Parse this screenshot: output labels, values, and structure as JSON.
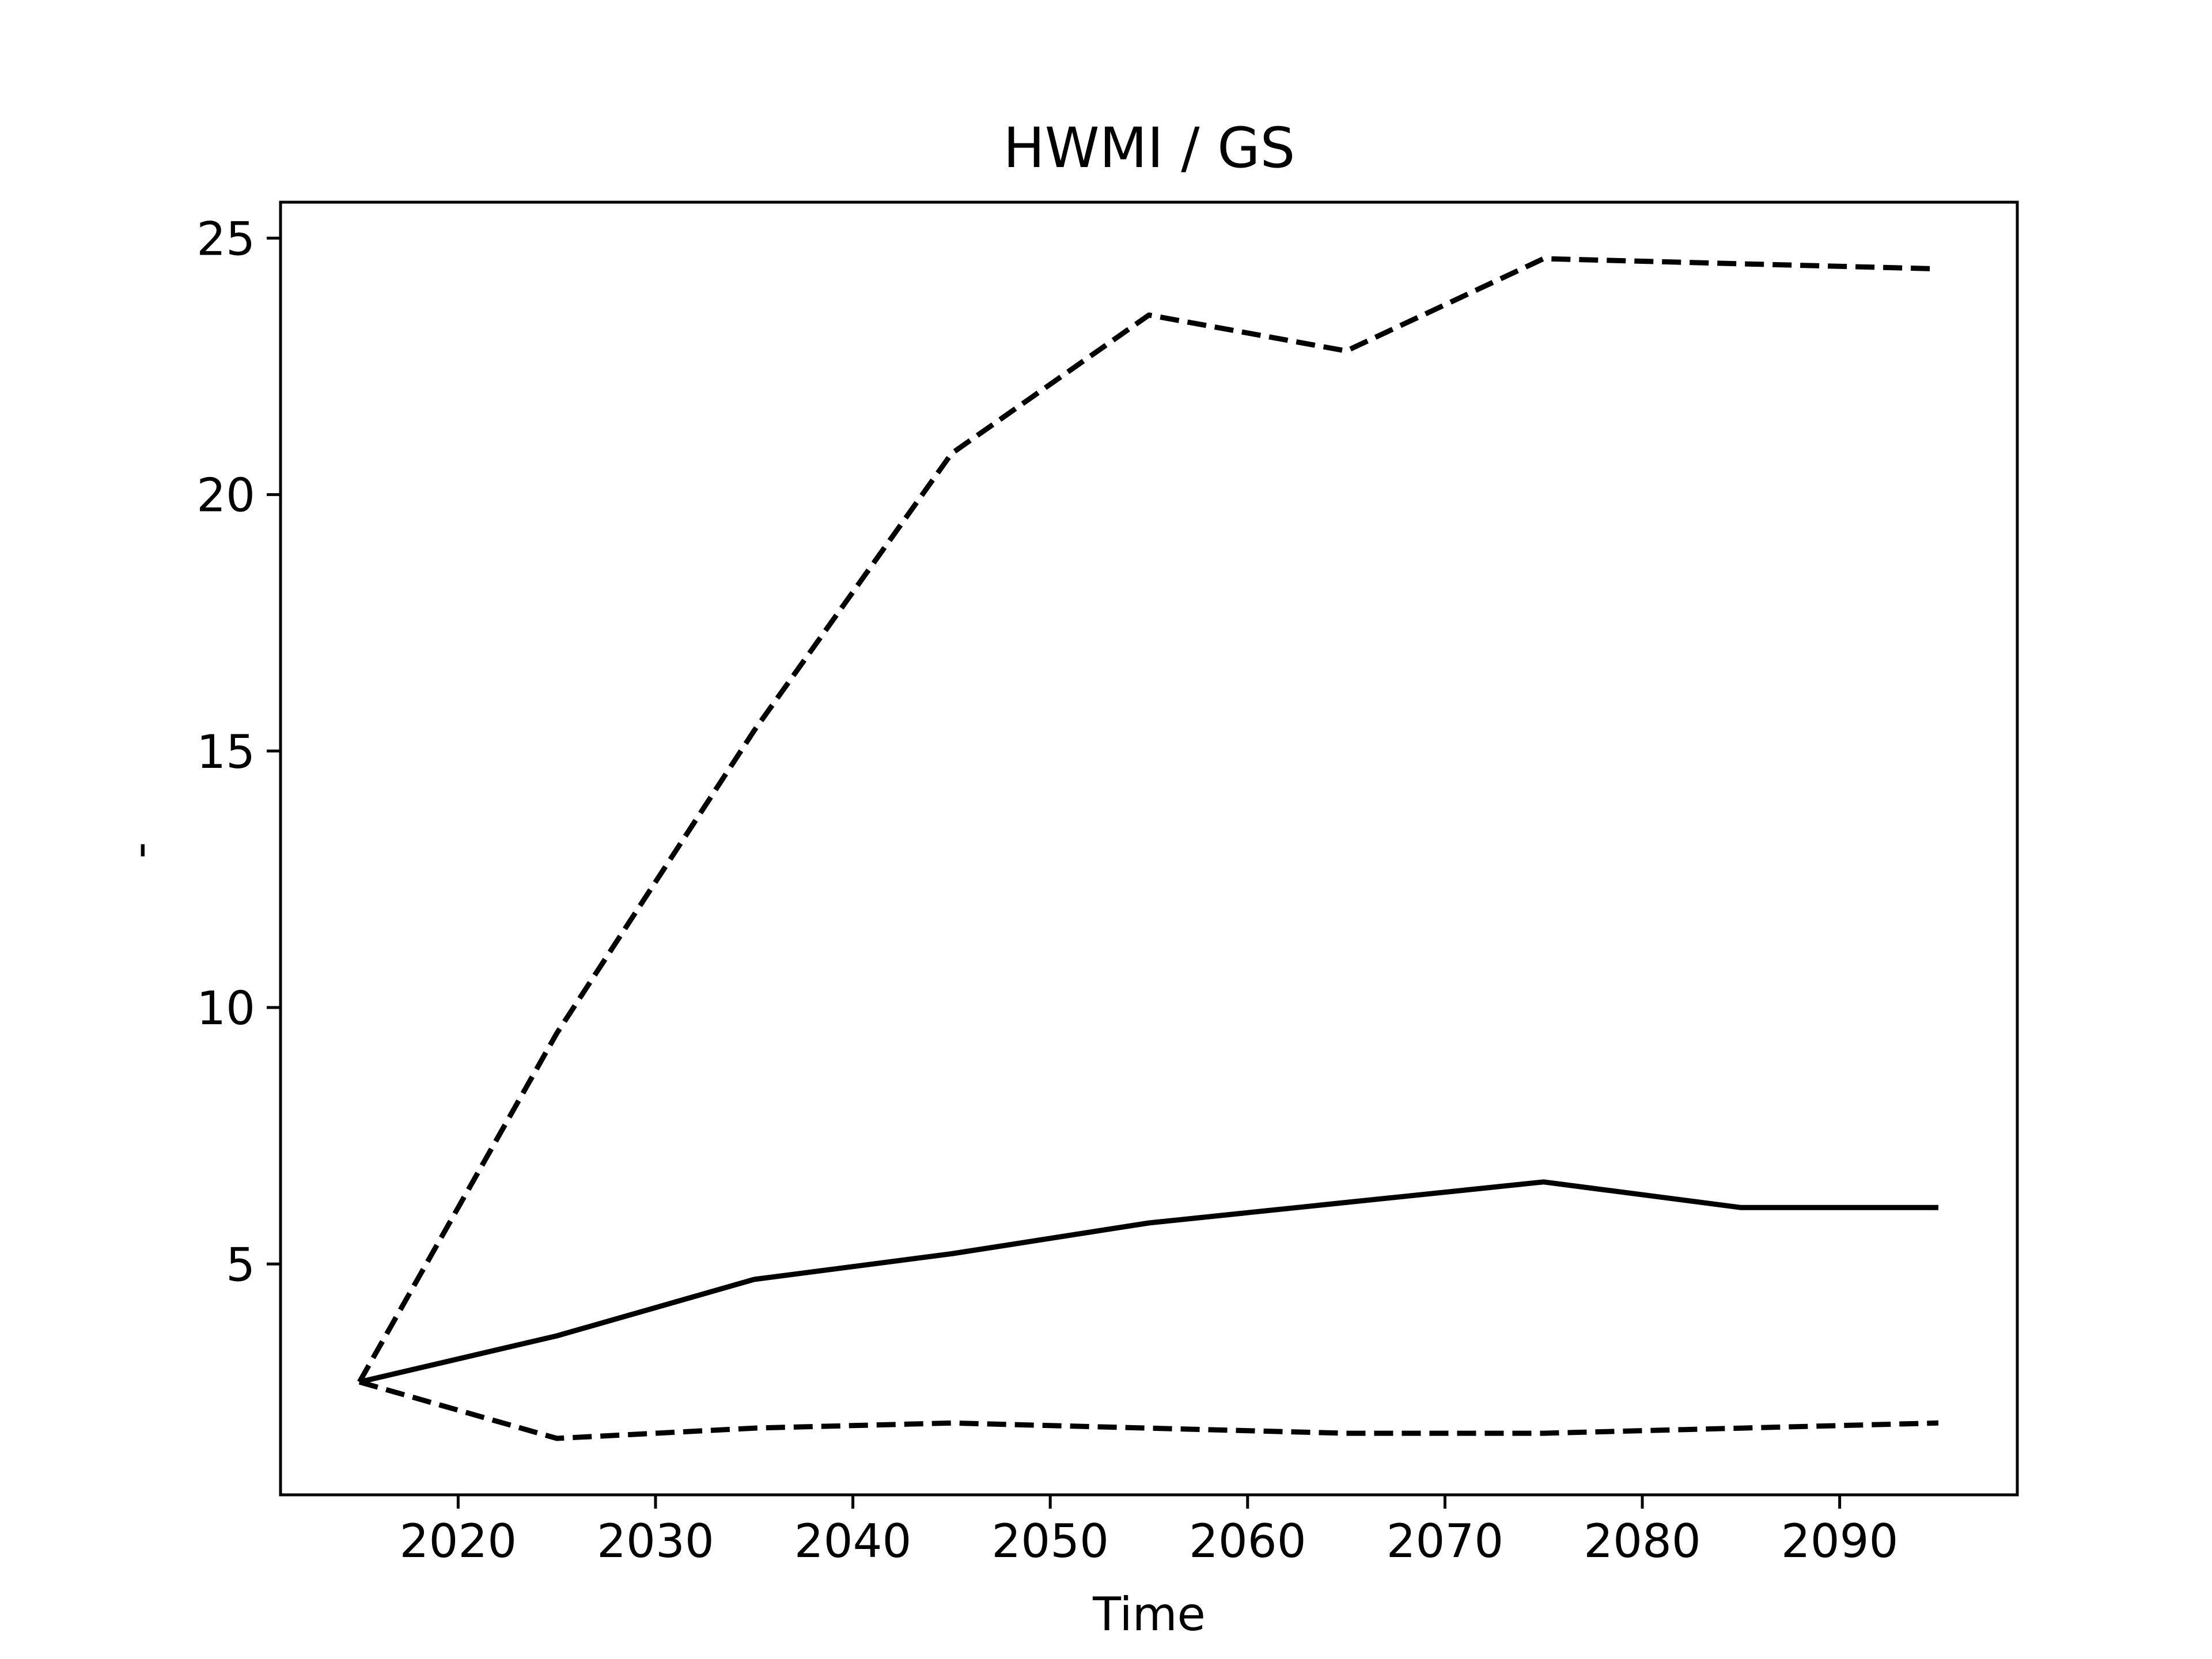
{
  "chart_data": {
    "type": "line",
    "title": "HWMI / GS",
    "xlabel": "Time",
    "ylabel": "-",
    "xlim": [
      2011,
      2099
    ],
    "ylim": [
      0.5,
      25.7
    ],
    "xticks": [
      2020,
      2030,
      2040,
      2050,
      2060,
      2070,
      2080,
      2090
    ],
    "yticks": [
      5,
      10,
      15,
      20,
      25
    ],
    "grid": false,
    "legend": "none",
    "x": [
      2015,
      2025,
      2035,
      2045,
      2055,
      2065,
      2075,
      2085,
      2095
    ],
    "series": [
      {
        "style": "solid",
        "color": "#000000",
        "values": [
          2.7,
          3.6,
          4.7,
          5.2,
          5.8,
          6.2,
          6.6,
          6.1,
          6.1
        ]
      },
      {
        "style": "dashed",
        "color": "#000000",
        "values": [
          2.7,
          9.5,
          15.4,
          20.8,
          23.5,
          22.8,
          24.6,
          24.5,
          24.4
        ]
      },
      {
        "style": "dashed",
        "color": "#000000",
        "values": [
          2.7,
          1.6,
          1.8,
          1.9,
          1.8,
          1.7,
          1.7,
          1.8,
          1.9
        ]
      }
    ]
  }
}
